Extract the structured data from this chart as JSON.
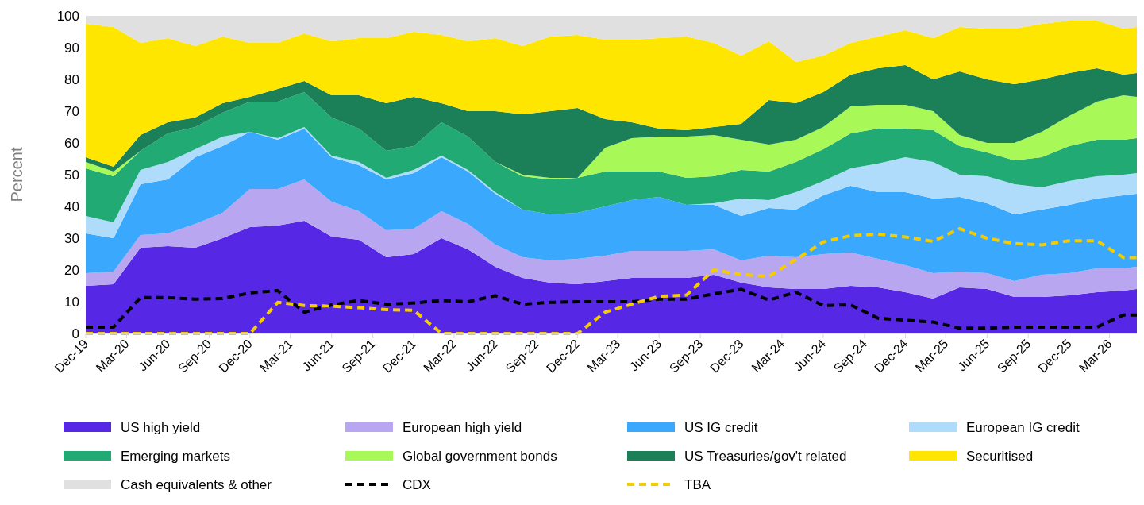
{
  "chart_data": {
    "type": "area",
    "stacked": true,
    "ylabel": "Percent",
    "ylim": [
      0,
      100
    ],
    "yticks": [
      0,
      10,
      20,
      30,
      40,
      50,
      60,
      70,
      80,
      90,
      100
    ],
    "xlim": [
      "2019-12",
      "2026-05"
    ],
    "xticks": [
      {
        "value": "2019-12",
        "label": "Dec-19"
      },
      {
        "value": "2020-03",
        "label": "Mar-20"
      },
      {
        "value": "2020-06",
        "label": "Jun-20"
      },
      {
        "value": "2020-09",
        "label": "Sep-20"
      },
      {
        "value": "2020-12",
        "label": "Dec-20"
      },
      {
        "value": "2021-03",
        "label": "Mar-21"
      },
      {
        "value": "2021-06",
        "label": "Jun-21"
      },
      {
        "value": "2021-09",
        "label": "Sep-21"
      },
      {
        "value": "2021-12",
        "label": "Dec-21"
      },
      {
        "value": "2022-03",
        "label": "Mar-22"
      },
      {
        "value": "2022-06",
        "label": "Jun-22"
      },
      {
        "value": "2022-09",
        "label": "Sep-22"
      },
      {
        "value": "2022-12",
        "label": "Dec-22"
      },
      {
        "value": "2023-03",
        "label": "Mar-23"
      },
      {
        "value": "2023-06",
        "label": "Jun-23"
      },
      {
        "value": "2023-09",
        "label": "Sep-23"
      },
      {
        "value": "2023-12",
        "label": "Dec-23"
      },
      {
        "value": "2024-03",
        "label": "Mar-24"
      },
      {
        "value": "2024-06",
        "label": "Jun-24"
      },
      {
        "value": "2024-09",
        "label": "Sep-24"
      },
      {
        "value": "2024-12",
        "label": "Dec-24"
      },
      {
        "value": "2025-03",
        "label": "Mar-25"
      },
      {
        "value": "2025-06",
        "label": "Jun-25"
      },
      {
        "value": "2025-09",
        "label": "Sep-25"
      },
      {
        "value": "2025-12",
        "label": "Dec-25"
      },
      {
        "value": "2026-03",
        "label": "Mar-26"
      }
    ],
    "x": [
      "2019-12",
      "2020-02",
      "2020-04",
      "2020-06",
      "2020-08",
      "2020-10",
      "2020-12",
      "2021-02",
      "2021-04",
      "2021-06",
      "2021-08",
      "2021-10",
      "2021-12",
      "2022-02",
      "2022-04",
      "2022-06",
      "2022-08",
      "2022-10",
      "2022-12",
      "2023-02",
      "2023-04",
      "2023-06",
      "2023-08",
      "2023-10",
      "2023-12",
      "2024-02",
      "2024-04",
      "2024-06",
      "2024-08",
      "2024-10",
      "2024-12",
      "2025-02",
      "2025-04",
      "2025-06",
      "2025-08",
      "2025-10",
      "2025-12",
      "2026-02",
      "2026-04",
      "2026-05"
    ],
    "legend": "bottom",
    "series": [
      {
        "name": "US high yield",
        "color": "#5628e6",
        "values": [
          15,
          15.5,
          27,
          27.5,
          27,
          30,
          33.5,
          34,
          35.5,
          30.5,
          29.5,
          24,
          25,
          30,
          26.5,
          21,
          17.5,
          16,
          15.5,
          16.5,
          17.5,
          17.5,
          17.5,
          18.5,
          16,
          14.5,
          14,
          14,
          15,
          14.5,
          13,
          11,
          14.5,
          14,
          11.5,
          11.5,
          12,
          13,
          13.5,
          14
        ]
      },
      {
        "name": "European high yield",
        "color": "#b9a6f0",
        "values": [
          4,
          4,
          4,
          4,
          7.5,
          8,
          12,
          11.5,
          13,
          11,
          9,
          8.5,
          8,
          8.5,
          8,
          7,
          6.5,
          7,
          8,
          8,
          8.5,
          8.5,
          8.5,
          8,
          7,
          10,
          10,
          11,
          10.5,
          9,
          8.5,
          8,
          5,
          5,
          5,
          7,
          7,
          7.5,
          7,
          7
        ]
      },
      {
        "name": "US IG credit",
        "color": "#3aa8fc",
        "values": [
          12.5,
          10.5,
          16,
          17,
          21,
          21,
          18,
          15.5,
          16,
          14,
          14.5,
          16,
          17.5,
          17,
          16.5,
          16,
          15,
          14.5,
          14.5,
          15.5,
          16,
          17,
          14.5,
          14,
          14,
          15,
          15,
          18.5,
          21,
          21,
          23,
          23.5,
          23.5,
          22,
          21,
          20.5,
          21.5,
          22,
          23,
          23
        ]
      },
      {
        "name": "European IG credit",
        "color": "#b0dcfc",
        "values": [
          5.5,
          5,
          4.5,
          5.5,
          2.5,
          3,
          0,
          0.5,
          0.5,
          0.5,
          1,
          0.5,
          1,
          0.5,
          0.5,
          0.5,
          0,
          0,
          0,
          0,
          0,
          0,
          0,
          0.5,
          5.5,
          2.5,
          5.5,
          4.5,
          5.5,
          9,
          11,
          11.5,
          7,
          8.5,
          9.5,
          7,
          7.5,
          7,
          6.5,
          6.5
        ]
      },
      {
        "name": "Emerging markets",
        "color": "#22aa74",
        "values": [
          15,
          14.5,
          6,
          9,
          7,
          7.5,
          9.5,
          11.5,
          11,
          12,
          10.5,
          8.5,
          7.5,
          10.5,
          10.5,
          9.5,
          10.5,
          11,
          11,
          11,
          9,
          8,
          8.5,
          8.5,
          9,
          9,
          9.5,
          10,
          11,
          11,
          9,
          10,
          9,
          7.5,
          7.5,
          9.5,
          11,
          11.5,
          11,
          11
        ]
      },
      {
        "name": "Global government bonds",
        "color": "#a8f858",
        "values": [
          2,
          1.5,
          0,
          0,
          0,
          0,
          0,
          0,
          0,
          0,
          0,
          0,
          0,
          0,
          0,
          0,
          0.5,
          0.5,
          0,
          7.5,
          10.5,
          11,
          13,
          13,
          9.5,
          8.5,
          7,
          7,
          8.5,
          7.5,
          7.5,
          6,
          3.5,
          3,
          5.5,
          8,
          9.5,
          12,
          14,
          13
        ]
      },
      {
        "name": "US Treasuries/gov't related",
        "color": "#1b7f58",
        "values": [
          1.5,
          1.5,
          5,
          3.5,
          3,
          3,
          1.5,
          4,
          3.5,
          7,
          10.5,
          15,
          15.5,
          6,
          8,
          16,
          19,
          21,
          22,
          9,
          5,
          2.5,
          2,
          2.5,
          5,
          14,
          11.5,
          11,
          10,
          11.5,
          12.5,
          10,
          20,
          20,
          18.5,
          16.5,
          13.5,
          10.5,
          6.5,
          7.5
        ]
      },
      {
        "name": "Securitised",
        "color": "#ffe600",
        "values": [
          42,
          44,
          29,
          26.5,
          22.5,
          21,
          17,
          14.5,
          15,
          17,
          18,
          20.5,
          20.5,
          21.5,
          22,
          23,
          21.5,
          23.5,
          23,
          25,
          26,
          28.5,
          29.5,
          26.5,
          21.5,
          18.5,
          13,
          11.5,
          10,
          10,
          11,
          13,
          14,
          16,
          17.5,
          17.5,
          16.5,
          15,
          14.5,
          14.5
        ]
      },
      {
        "name": "Cash equivalents & other",
        "color": "#e0e0e0",
        "values": [
          2.5,
          3.5,
          8.5,
          7,
          9.5,
          6.5,
          8.5,
          8.5,
          5.5,
          8,
          7,
          7,
          5,
          6,
          8,
          7,
          9.5,
          6.5,
          6,
          7.5,
          7.5,
          7,
          6.5,
          8.5,
          12.5,
          8,
          14.5,
          12.5,
          8.5,
          6.5,
          4.5,
          7,
          3.5,
          4,
          4,
          2.5,
          1.5,
          1.5,
          4,
          3.5
        ]
      },
      {
        "name": "CDX",
        "type": "line",
        "line_style": "dashed",
        "color": "#000000",
        "values": [
          2,
          2,
          11.3,
          11.3,
          10.8,
          11,
          12.8,
          13.5,
          6.7,
          9,
          10.4,
          9.2,
          9.6,
          10.4,
          10,
          11.9,
          9.2,
          9.8,
          10,
          10,
          10,
          10.8,
          10.8,
          12.5,
          13.9,
          10.5,
          13,
          8.8,
          9,
          4.8,
          4.2,
          3.6,
          1.7,
          1.7,
          2,
          2,
          2,
          2,
          5.8,
          5.8
        ]
      },
      {
        "name": "TBA",
        "type": "line",
        "line_style": "dashed",
        "color": "#f5cc00",
        "values": [
          0,
          0,
          0,
          0,
          0,
          0,
          0,
          9.8,
          8.8,
          8.6,
          8.1,
          7.5,
          7.3,
          0,
          0,
          0,
          0,
          0,
          0,
          6.7,
          9.2,
          11.7,
          12.1,
          20,
          18.6,
          18,
          23.3,
          28.8,
          30.8,
          31.3,
          30.4,
          29,
          33,
          30,
          28.3,
          27.9,
          29.2,
          29.2,
          23.9,
          23.9
        ]
      }
    ]
  }
}
